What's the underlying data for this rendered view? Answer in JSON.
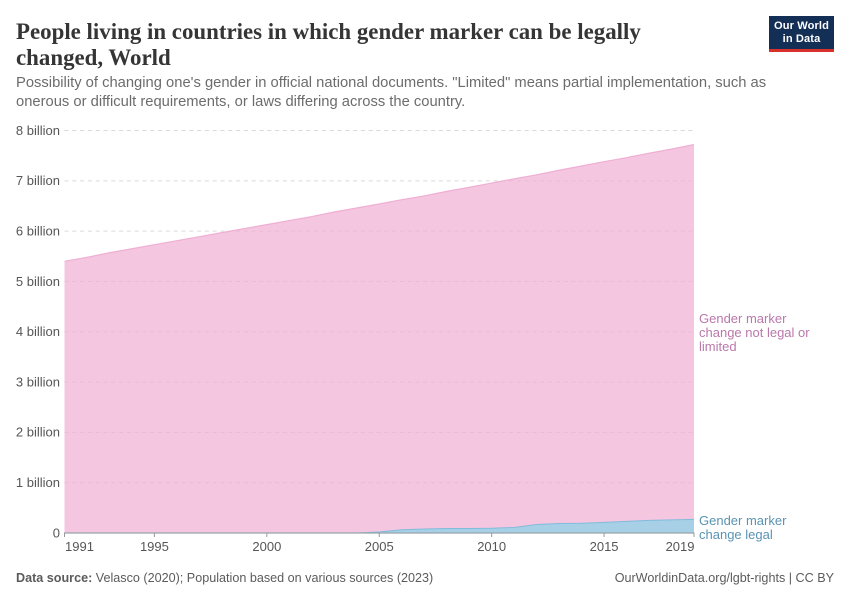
{
  "header": {
    "title_lines": [
      "People living in countries in which gender marker can be legally",
      "changed, World"
    ],
    "subtitle_lines": [
      "Possibility of changing one's gender in official national documents. \"Limited\" means partial implementation, such as",
      "onerous or difficult requirements, or laws differing across the country."
    ],
    "logo": {
      "line1": "Our World",
      "line2": "in Data",
      "background": "#132f56",
      "bar_color": "#d8302a"
    }
  },
  "chart_data": {
    "type": "area",
    "stacked": true,
    "title": "People living in countries in which gender marker can be legally changed, World",
    "unit": "billion people",
    "x": [
      1991,
      1992,
      1993,
      1994,
      1995,
      1996,
      1997,
      1998,
      1999,
      2000,
      2001,
      2002,
      2003,
      2004,
      2005,
      2006,
      2007,
      2008,
      2009,
      2010,
      2011,
      2012,
      2013,
      2014,
      2015,
      2016,
      2017,
      2018,
      2019
    ],
    "series": [
      {
        "name": "Gender marker change legal",
        "label_lines": [
          "Gender marker",
          "change legal"
        ],
        "color": "#81BCDB",
        "label_color": "#5a93b3",
        "values_billions": [
          0,
          0,
          0,
          0,
          0,
          0,
          0,
          0,
          0,
          0,
          0,
          0,
          0,
          0,
          0.02,
          0.065,
          0.08,
          0.09,
          0.09,
          0.095,
          0.11,
          0.17,
          0.19,
          0.195,
          0.21,
          0.23,
          0.25,
          0.26,
          0.27
        ]
      },
      {
        "name": "Gender marker change not legal or limited",
        "label_lines": [
          "Gender marker",
          "change not legal or",
          "limited"
        ],
        "color": "#EFAED3",
        "label_color": "#ba78ab",
        "values_billions": [
          5.4,
          5.48,
          5.57,
          5.65,
          5.73,
          5.81,
          5.89,
          5.97,
          6.05,
          6.13,
          6.21,
          6.29,
          6.38,
          6.46,
          6.52,
          6.56,
          6.62,
          6.7,
          6.78,
          6.86,
          6.93,
          6.95,
          7.02,
          7.1,
          7.17,
          7.23,
          7.3,
          7.37,
          7.45
        ]
      }
    ],
    "x_ticks": [
      1991,
      1995,
      2000,
      2005,
      2010,
      2015,
      2019
    ],
    "y_ticks": [
      {
        "v": 0,
        "label": "0"
      },
      {
        "v": 1,
        "label": "1 billion"
      },
      {
        "v": 2,
        "label": "2 billion"
      },
      {
        "v": 3,
        "label": "3 billion"
      },
      {
        "v": 4,
        "label": "4 billion"
      },
      {
        "v": 5,
        "label": "5 billion"
      },
      {
        "v": 6,
        "label": "6 billion"
      },
      {
        "v": 7,
        "label": "7 billion"
      },
      {
        "v": 8,
        "label": "8 billion"
      }
    ],
    "ylim_billions": [
      0,
      8
    ],
    "grid": "dashed-horizontal",
    "gridline_color": "#dadada",
    "axis_line_color": "#97a5ad",
    "tick_mark_color": "#999999",
    "tick_label_color": "#565656",
    "legend_position": "right-edge-labels"
  },
  "footer": {
    "source_label": "Data source:",
    "source_text": " Velasco (2020); Population based on various sources (2023)",
    "credit": "OurWorldinData.org/lgbt-rights | CC BY"
  }
}
